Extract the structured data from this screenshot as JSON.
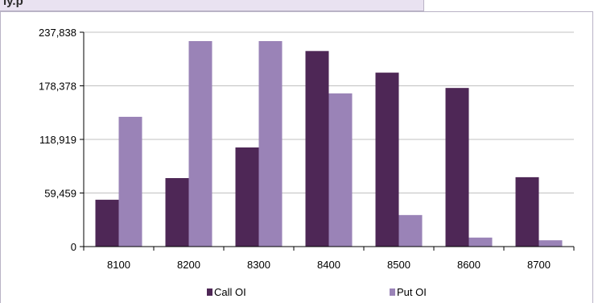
{
  "header": {
    "title": "ly.p"
  },
  "colors": {
    "call": "#4e2756",
    "put": "#9a83b7",
    "grid": "#c0c0c0",
    "axis": "#000000"
  },
  "chart_data": {
    "type": "bar",
    "categories": [
      "8100",
      "8200",
      "8300",
      "8400",
      "8500",
      "8600",
      "8700"
    ],
    "series": [
      {
        "name": "Call OI",
        "values": [
          52000,
          76000,
          110000,
          217000,
          193000,
          176000,
          77000
        ]
      },
      {
        "name": "Put OI",
        "values": [
          144000,
          228000,
          228000,
          170000,
          35000,
          10000,
          7000
        ]
      }
    ],
    "y_ticks": [
      0,
      59459,
      118919,
      178378,
      237838
    ],
    "y_tick_labels": [
      "0",
      "59,459",
      "118,919",
      "178,378",
      "237,838"
    ],
    "ylim": [
      0,
      237838
    ],
    "grid": true,
    "legend": "bottom"
  }
}
